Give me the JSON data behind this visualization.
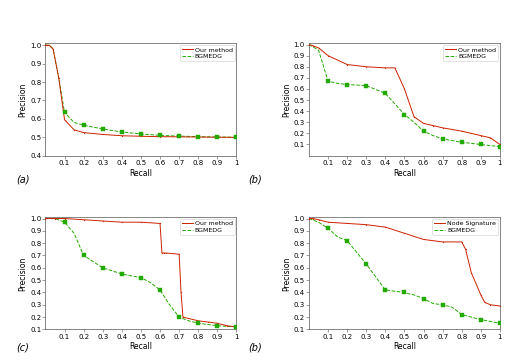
{
  "subplots": [
    {
      "label": "(a)",
      "xlabel": "Recall",
      "ylabel": "Precision",
      "ylim": [
        0.4,
        1.01
      ],
      "xlim": [
        0.0,
        1.0
      ],
      "yticks": [
        0.4,
        0.5,
        0.6,
        0.7,
        0.8,
        0.9,
        1.0
      ],
      "xticks": [
        0.1,
        0.2,
        0.3,
        0.4,
        0.5,
        0.6,
        0.7,
        0.8,
        0.9,
        1.0
      ],
      "legend": [
        "Our method",
        "BGMEDG"
      ],
      "our_method": {
        "x": [
          0.0,
          0.005,
          0.01,
          0.02,
          0.04,
          0.07,
          0.1,
          0.15,
          0.2,
          0.3,
          0.4,
          0.5,
          0.6,
          0.7,
          0.8,
          0.9,
          1.0
        ],
        "y": [
          1.0,
          1.0,
          1.0,
          1.0,
          0.98,
          0.82,
          0.595,
          0.54,
          0.525,
          0.515,
          0.508,
          0.505,
          0.503,
          0.502,
          0.501,
          0.5,
          0.499
        ]
      },
      "bgmedg": {
        "x": [
          0.0,
          0.005,
          0.01,
          0.02,
          0.04,
          0.07,
          0.1,
          0.15,
          0.2,
          0.3,
          0.4,
          0.5,
          0.6,
          0.7,
          0.8,
          0.9,
          1.0
        ],
        "y": [
          1.0,
          1.0,
          1.0,
          1.0,
          0.98,
          0.82,
          0.635,
          0.58,
          0.565,
          0.545,
          0.528,
          0.518,
          0.51,
          0.506,
          0.503,
          0.501,
          0.5
        ],
        "markers_x": [
          0.1,
          0.2,
          0.3,
          0.4,
          0.5,
          0.6,
          0.7,
          0.8,
          0.9,
          1.0
        ],
        "markers_y": [
          0.635,
          0.565,
          0.545,
          0.528,
          0.518,
          0.51,
          0.506,
          0.503,
          0.501,
          0.5
        ]
      }
    },
    {
      "label": "(b)",
      "xlabel": "Recall",
      "ylabel": "Precision",
      "ylim": [
        0.0,
        1.01
      ],
      "xlim": [
        0.0,
        1.0
      ],
      "yticks": [
        0.1,
        0.2,
        0.3,
        0.4,
        0.5,
        0.6,
        0.7,
        0.8,
        0.9,
        1.0
      ],
      "xticks": [
        0.1,
        0.2,
        0.3,
        0.4,
        0.5,
        0.6,
        0.7,
        0.8,
        0.9,
        1.0
      ],
      "legend": [
        "Our method",
        "BGMEDG"
      ],
      "our_method": {
        "x": [
          0.0,
          0.02,
          0.05,
          0.1,
          0.2,
          0.3,
          0.4,
          0.45,
          0.5,
          0.55,
          0.6,
          0.65,
          0.7,
          0.75,
          0.8,
          0.85,
          0.9,
          0.95,
          1.0
        ],
        "y": [
          1.0,
          0.99,
          0.97,
          0.9,
          0.82,
          0.8,
          0.79,
          0.79,
          0.6,
          0.35,
          0.29,
          0.27,
          0.25,
          0.235,
          0.22,
          0.2,
          0.18,
          0.16,
          0.1
        ]
      },
      "bgmedg": {
        "x": [
          0.0,
          0.05,
          0.1,
          0.15,
          0.2,
          0.3,
          0.4,
          0.5,
          0.55,
          0.6,
          0.65,
          0.7,
          0.8,
          0.9,
          1.0
        ],
        "y": [
          1.0,
          0.95,
          0.67,
          0.65,
          0.64,
          0.63,
          0.56,
          0.37,
          0.3,
          0.22,
          0.18,
          0.15,
          0.12,
          0.1,
          0.08
        ],
        "markers_x": [
          0.1,
          0.2,
          0.3,
          0.4,
          0.5,
          0.6,
          0.7,
          0.8,
          0.9,
          1.0
        ],
        "markers_y": [
          0.67,
          0.64,
          0.63,
          0.56,
          0.37,
          0.22,
          0.15,
          0.12,
          0.1,
          0.08
        ]
      }
    },
    {
      "label": "(c)",
      "xlabel": "Recall",
      "ylabel": "Precision",
      "ylim": [
        0.1,
        1.01
      ],
      "xlim": [
        0.0,
        1.0
      ],
      "yticks": [
        0.1,
        0.2,
        0.3,
        0.4,
        0.5,
        0.6,
        0.7,
        0.8,
        0.9,
        1.0
      ],
      "xticks": [
        0.1,
        0.2,
        0.3,
        0.4,
        0.5,
        0.6,
        0.7,
        0.8,
        0.9,
        1.0
      ],
      "legend": [
        "Our method",
        "BGMEDG"
      ],
      "our_method": {
        "x": [
          0.0,
          0.05,
          0.1,
          0.2,
          0.3,
          0.4,
          0.5,
          0.6,
          0.61,
          0.62,
          0.63,
          0.7,
          0.71,
          0.72,
          0.8,
          0.85,
          0.9,
          0.95,
          1.0
        ],
        "y": [
          1.0,
          1.0,
          1.0,
          0.99,
          0.98,
          0.97,
          0.97,
          0.96,
          0.72,
          0.72,
          0.72,
          0.71,
          0.4,
          0.2,
          0.17,
          0.16,
          0.15,
          0.13,
          0.12
        ]
      },
      "bgmedg": {
        "x": [
          0.0,
          0.05,
          0.1,
          0.15,
          0.2,
          0.3,
          0.4,
          0.5,
          0.55,
          0.6,
          0.65,
          0.7,
          0.75,
          0.8,
          0.85,
          0.9,
          1.0
        ],
        "y": [
          1.0,
          1.0,
          0.97,
          0.88,
          0.7,
          0.6,
          0.55,
          0.52,
          0.48,
          0.42,
          0.3,
          0.2,
          0.17,
          0.15,
          0.14,
          0.13,
          0.12
        ],
        "markers_x": [
          0.1,
          0.2,
          0.3,
          0.4,
          0.5,
          0.6,
          0.7,
          0.8,
          0.9,
          1.0
        ],
        "markers_y": [
          0.97,
          0.7,
          0.6,
          0.55,
          0.52,
          0.42,
          0.2,
          0.15,
          0.13,
          0.12
        ]
      }
    },
    {
      "label": "(b)",
      "xlabel": "Recall",
      "ylabel": "Precision",
      "ylim": [
        0.1,
        1.01
      ],
      "xlim": [
        0.0,
        1.0
      ],
      "yticks": [
        0.1,
        0.2,
        0.3,
        0.4,
        0.5,
        0.6,
        0.7,
        0.8,
        0.9,
        1.0
      ],
      "xticks": [
        0.1,
        0.2,
        0.3,
        0.4,
        0.5,
        0.6,
        0.7,
        0.8,
        0.9,
        1.0
      ],
      "legend": [
        "Node Signature",
        "BGMEDG"
      ],
      "our_method": {
        "x": [
          0.0,
          0.02,
          0.05,
          0.1,
          0.2,
          0.3,
          0.4,
          0.5,
          0.6,
          0.7,
          0.8,
          0.82,
          0.85,
          0.9,
          0.92,
          0.95,
          1.0
        ],
        "y": [
          1.0,
          1.0,
          0.99,
          0.97,
          0.96,
          0.95,
          0.93,
          0.88,
          0.83,
          0.81,
          0.81,
          0.75,
          0.56,
          0.38,
          0.32,
          0.3,
          0.29
        ]
      },
      "bgmedg": {
        "x": [
          0.0,
          0.05,
          0.1,
          0.15,
          0.2,
          0.3,
          0.4,
          0.5,
          0.52,
          0.55,
          0.6,
          0.65,
          0.7,
          0.75,
          0.8,
          0.9,
          1.0
        ],
        "y": [
          1.0,
          0.97,
          0.92,
          0.85,
          0.82,
          0.63,
          0.42,
          0.4,
          0.39,
          0.38,
          0.35,
          0.31,
          0.3,
          0.28,
          0.22,
          0.18,
          0.15
        ],
        "markers_x": [
          0.1,
          0.2,
          0.3,
          0.4,
          0.5,
          0.6,
          0.7,
          0.8,
          0.9,
          1.0
        ],
        "markers_y": [
          0.92,
          0.82,
          0.63,
          0.42,
          0.4,
          0.35,
          0.3,
          0.22,
          0.18,
          0.15
        ]
      }
    }
  ],
  "red_color": "#cc2200",
  "green_color": "#22aa00",
  "bg_color": "#ffffff",
  "font_size": 7,
  "label_font_size": 5.5,
  "tick_font_size": 5,
  "legend_font_size": 4.5
}
